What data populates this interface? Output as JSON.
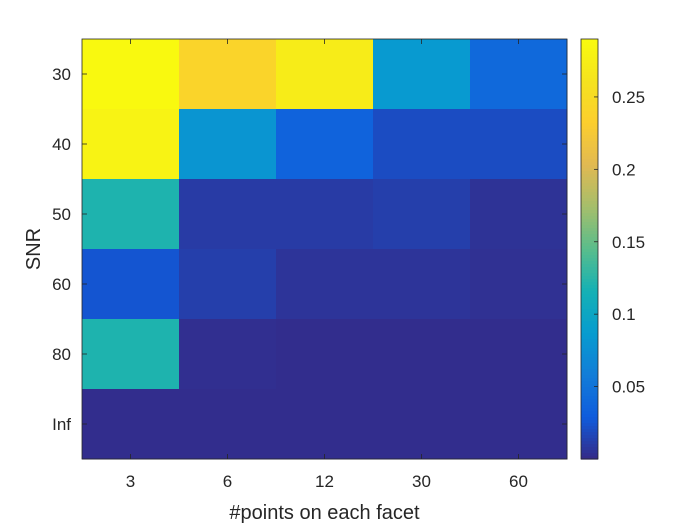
{
  "chart_data": {
    "type": "heatmap",
    "title": "",
    "xlabel": "#points on each facet",
    "ylabel": "SNR",
    "x_categories": [
      "3",
      "6",
      "12",
      "30",
      "60"
    ],
    "y_categories": [
      "30",
      "40",
      "50",
      "60",
      "80",
      "Inf"
    ],
    "values": [
      [
        0.288,
        0.24,
        0.272,
        0.085,
        0.04
      ],
      [
        0.28,
        0.08,
        0.035,
        0.02,
        0.02
      ],
      [
        0.12,
        0.01,
        0.01,
        0.012,
        0.005
      ],
      [
        0.025,
        0.012,
        0.006,
        0.006,
        0.004
      ],
      [
        0.12,
        0.003,
        0.002,
        0.002,
        0.002
      ],
      [
        0.002,
        0.002,
        0.002,
        0.002,
        0.002
      ]
    ],
    "colorbar": {
      "range": [
        0.0,
        0.29
      ],
      "ticks": [
        0.05,
        0.1,
        0.15,
        0.2,
        0.25
      ],
      "tick_labels": [
        "0.05",
        "0.1",
        "0.15",
        "0.2",
        "0.25"
      ],
      "colormap": "parula"
    },
    "grid": false,
    "legend": "none"
  }
}
